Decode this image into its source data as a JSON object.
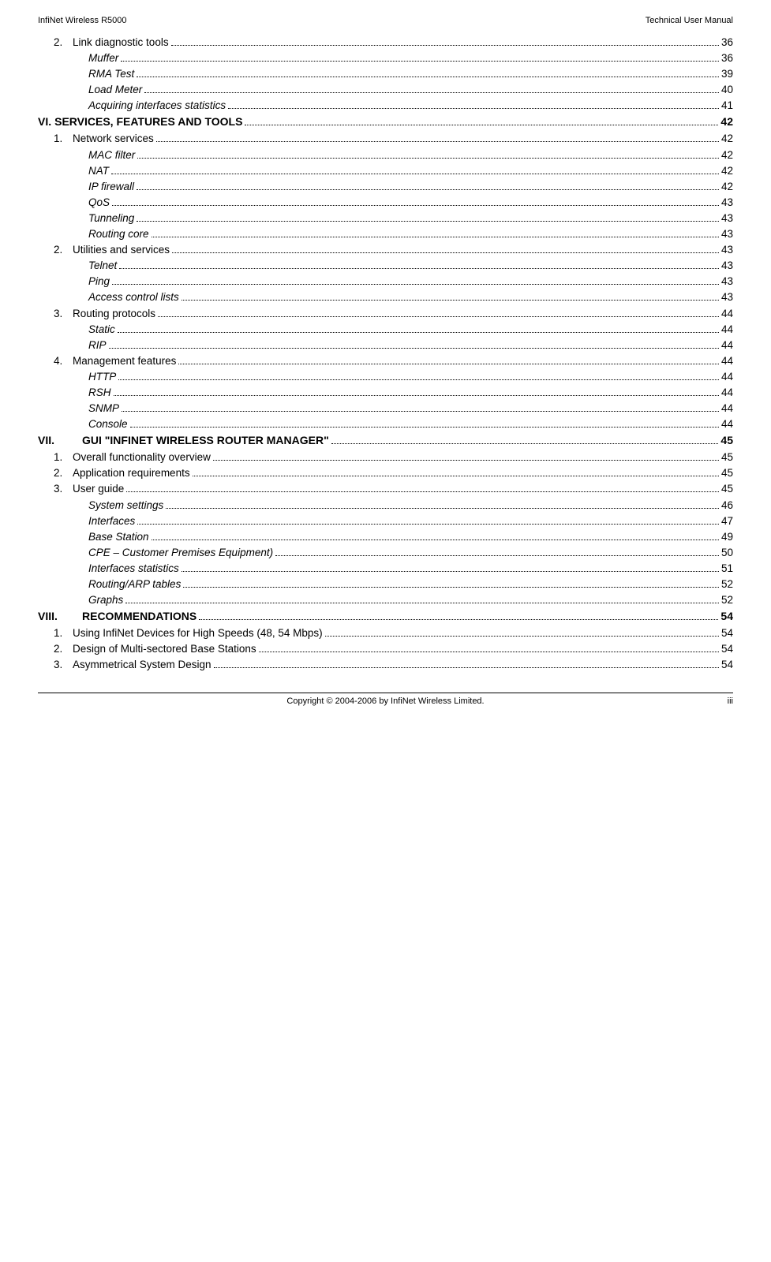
{
  "header": {
    "left": "InfiNet Wireless R5000",
    "right": "Technical User Manual"
  },
  "footer": {
    "center": "Copyright © 2004-2006 by InfiNet Wireless Limited.",
    "right": "iii"
  },
  "toc": [
    {
      "indent": 1,
      "bold": false,
      "prefix": "2.",
      "text": "Link diagnostic tools",
      "page": "36"
    },
    {
      "indent": 2,
      "bold": false,
      "prefix": "",
      "text": "Muffer ",
      "page": "36"
    },
    {
      "indent": 2,
      "bold": false,
      "prefix": "",
      "text": "RMA Test",
      "page": "39"
    },
    {
      "indent": 2,
      "bold": false,
      "prefix": "",
      "text": "Load Meter",
      "page": "40"
    },
    {
      "indent": 2,
      "bold": false,
      "prefix": "",
      "text": "Acquiring interfaces statistics",
      "page": "41"
    },
    {
      "indent": 0,
      "bold": true,
      "prefix": "VI.",
      "text": "SERVICES, FEATURES AND TOOLS",
      "page": "42"
    },
    {
      "indent": 1,
      "bold": false,
      "prefix": "1.",
      "text": "Network services ",
      "page": "42"
    },
    {
      "indent": 2,
      "bold": false,
      "prefix": "",
      "text": "MAC filter",
      "page": "42"
    },
    {
      "indent": 2,
      "bold": false,
      "prefix": "",
      "text": "NAT",
      "page": "42"
    },
    {
      "indent": 2,
      "bold": false,
      "prefix": "",
      "text": "IP firewall",
      "page": "42"
    },
    {
      "indent": 2,
      "bold": false,
      "prefix": "",
      "text": "QoS",
      "page": "43"
    },
    {
      "indent": 2,
      "bold": false,
      "prefix": "",
      "text": "Tunneling",
      "page": "43"
    },
    {
      "indent": 2,
      "bold": false,
      "prefix": "",
      "text": "Routing core",
      "page": "43"
    },
    {
      "indent": 1,
      "bold": false,
      "prefix": "2.",
      "text": "Utilities and services",
      "page": "43"
    },
    {
      "indent": 2,
      "bold": false,
      "prefix": "",
      "text": "Telnet",
      "page": "43"
    },
    {
      "indent": 2,
      "bold": false,
      "prefix": "",
      "text": "Ping ",
      "page": "43"
    },
    {
      "indent": 2,
      "bold": false,
      "prefix": "",
      "text": "Access control lists",
      "page": "43"
    },
    {
      "indent": 1,
      "bold": false,
      "prefix": "3.",
      "text": "Routing protocols",
      "page": "44"
    },
    {
      "indent": 2,
      "bold": false,
      "prefix": "",
      "text": "Static",
      "page": "44"
    },
    {
      "indent": 2,
      "bold": false,
      "prefix": "",
      "text": "RIP",
      "page": "44"
    },
    {
      "indent": 1,
      "bold": false,
      "prefix": "4.",
      "text": "Management features",
      "page": "44"
    },
    {
      "indent": 2,
      "bold": false,
      "prefix": "",
      "text": "HTTP",
      "page": "44"
    },
    {
      "indent": 2,
      "bold": false,
      "prefix": "",
      "text": "RSH",
      "page": "44"
    },
    {
      "indent": 2,
      "bold": false,
      "prefix": "",
      "text": "SNMP ",
      "page": "44"
    },
    {
      "indent": 2,
      "bold": false,
      "prefix": "",
      "text": "Console ",
      "page": "44"
    },
    {
      "indent": 0,
      "bold": true,
      "prefix": "VII.",
      "text": "GUI \"INFINET WIRELESS ROUTER MANAGER\"",
      "page": "45",
      "wide_prefix": true
    },
    {
      "indent": 1,
      "bold": false,
      "prefix": "1.",
      "text": "Overall functionality overview",
      "page": "45"
    },
    {
      "indent": 1,
      "bold": false,
      "prefix": "2.",
      "text": "Application requirements ",
      "page": "45"
    },
    {
      "indent": 1,
      "bold": false,
      "prefix": "3.",
      "text": "User guide ",
      "page": "45"
    },
    {
      "indent": 2,
      "bold": false,
      "prefix": "",
      "text": "System settings ",
      "page": "46"
    },
    {
      "indent": 2,
      "bold": false,
      "prefix": "",
      "text": "Interfaces ",
      "page": "47"
    },
    {
      "indent": 2,
      "bold": false,
      "prefix": "",
      "text": "Base Station",
      "page": "49"
    },
    {
      "indent": 2,
      "bold": false,
      "prefix": "",
      "text": "CPE – Customer Premises Equipment)",
      "page": "50"
    },
    {
      "indent": 2,
      "bold": false,
      "prefix": "",
      "text": "Interfaces statistics ",
      "page": "51"
    },
    {
      "indent": 2,
      "bold": false,
      "prefix": "",
      "text": "Routing/ARP tables ",
      "page": "52"
    },
    {
      "indent": 2,
      "bold": false,
      "prefix": "",
      "text": "Graphs",
      "page": "52"
    },
    {
      "indent": 0,
      "bold": true,
      "prefix": "VIII.",
      "text": "RECOMMENDATIONS",
      "page": "54",
      "wide_prefix": true
    },
    {
      "indent": 1,
      "bold": false,
      "prefix": "1.",
      "text": "Using InfiNet Devices for High Speeds (48, 54 Mbps)",
      "page": "54"
    },
    {
      "indent": 1,
      "bold": false,
      "prefix": "2.",
      "text": "Design of Multi-sectored Base Stations ",
      "page": "54"
    },
    {
      "indent": 1,
      "bold": false,
      "prefix": "3.",
      "text": "Asymmetrical System Design",
      "page": "54"
    }
  ]
}
